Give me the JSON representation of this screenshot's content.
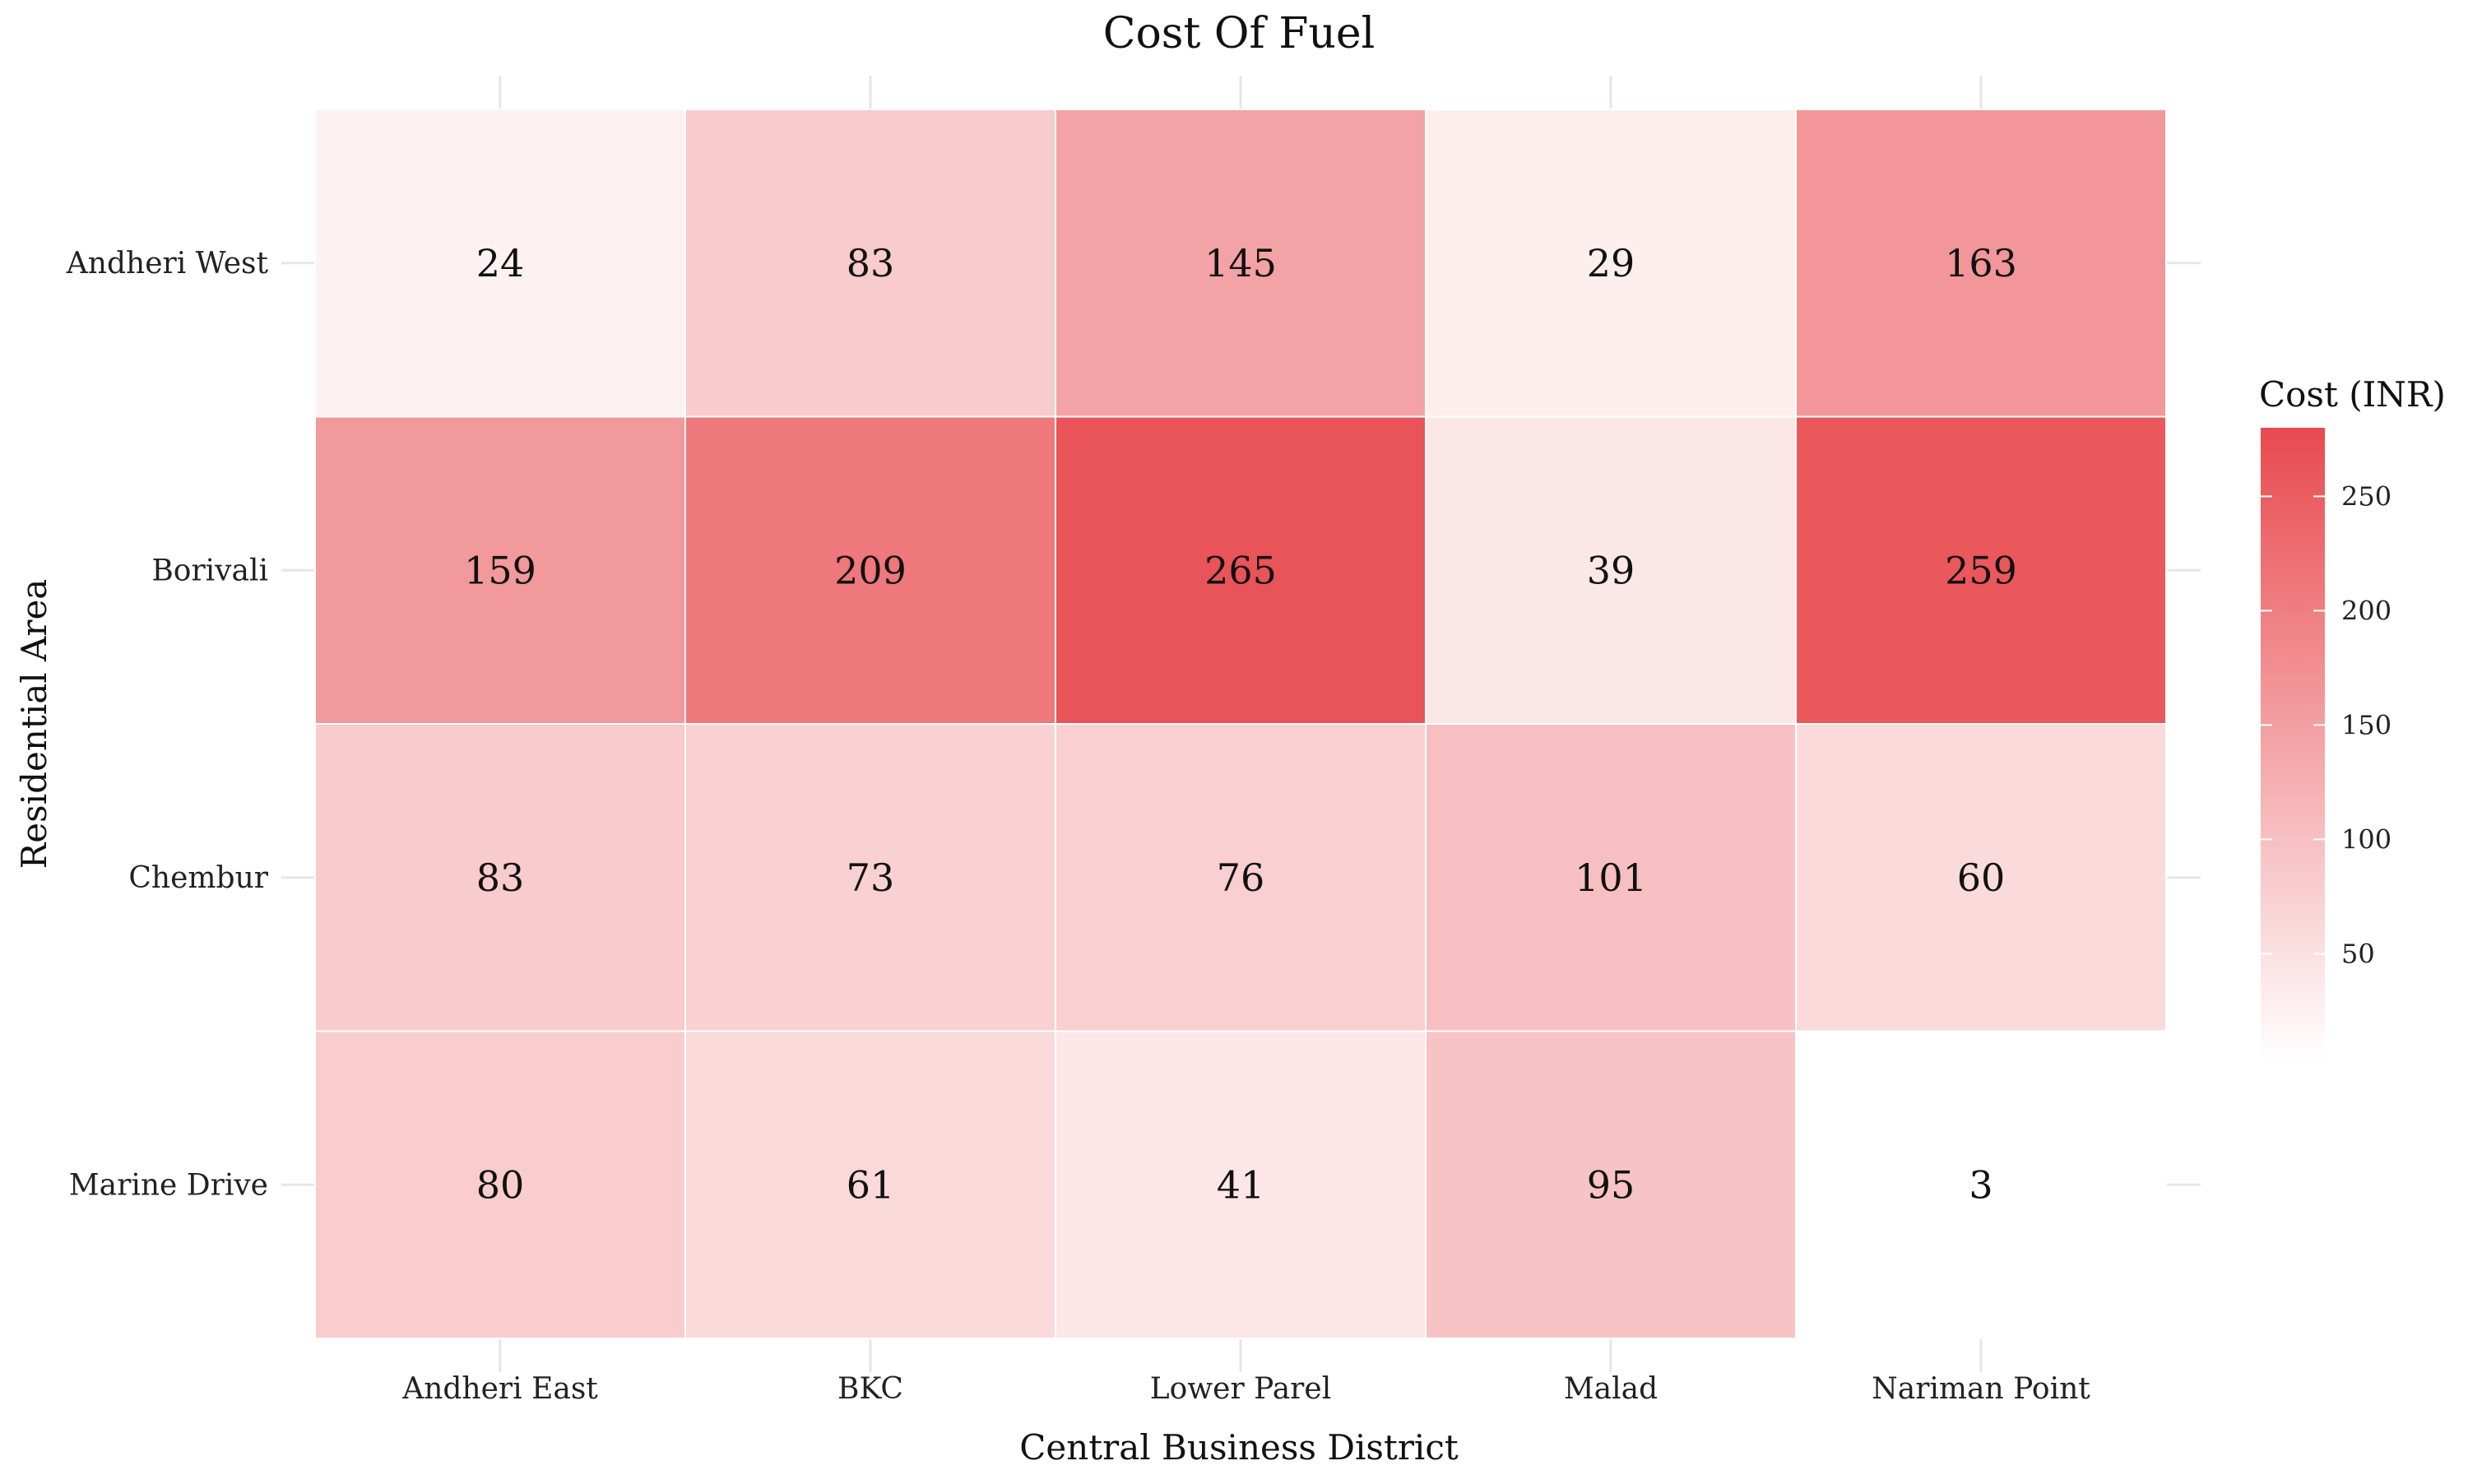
{
  "chart_data": {
    "type": "heatmap",
    "title": "Cost Of Fuel",
    "xlabel": "Central Business District",
    "ylabel": "Residential Area",
    "x_categories": [
      "Andheri East",
      "BKC",
      "Lower Parel",
      "Malad",
      "Nariman Point"
    ],
    "y_categories": [
      "Andheri West",
      "Borivali",
      "Chembur",
      "Marine Drive"
    ],
    "values": [
      [
        24,
        83,
        145,
        29,
        163
      ],
      [
        159,
        209,
        265,
        39,
        259
      ],
      [
        83,
        73,
        76,
        101,
        60
      ],
      [
        80,
        61,
        41,
        95,
        3
      ]
    ],
    "legend": {
      "title": "Cost (INR)",
      "ticks": [
        50,
        100,
        150,
        200,
        250
      ],
      "position": "right",
      "range": [
        3,
        280
      ]
    },
    "colors": {
      "low": "#ffffff",
      "high": "#e84a4f",
      "grid": "#e6e6e6",
      "tile_border": "#ffffff"
    },
    "grid": true
  }
}
